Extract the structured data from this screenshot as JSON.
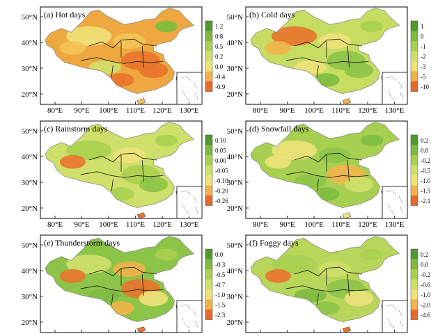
{
  "lat_labels": [
    "50°N",
    "40°N",
    "30°N",
    "20°N"
  ],
  "lon_labels": [
    "80°E",
    "90°E",
    "100°E",
    "110°E",
    "120°E",
    "130°E"
  ],
  "panels": [
    {
      "title": "(a) Hot days",
      "ticks": [
        "1.2",
        "0.8",
        "0.5",
        "0.2",
        "0.0",
        "-0.4",
        "-0.9"
      ],
      "scale": [
        "#4e9a2e",
        "#7dbb40",
        "#a8d050",
        "#cfe06a",
        "#eee27a",
        "#f2b24a",
        "#e86a2a"
      ],
      "base": "#efa840",
      "blobs": [
        {
          "c": "#eee27a"
        },
        {
          "c": "#f3c458"
        },
        {
          "c": "#e9732c"
        },
        {
          "c": "#e9732c"
        },
        {
          "c": "#cfe06a"
        },
        {
          "c": "#7dbb40"
        },
        {
          "c": "#f3c458"
        },
        {
          "c": "#e9732c"
        }
      ]
    },
    {
      "title": "(b) Cold days",
      "ticks": [
        "1",
        "0",
        "-1",
        "-2",
        "-3",
        "-5",
        "-10"
      ],
      "scale": [
        "#4e9a2e",
        "#7dbb40",
        "#a8d050",
        "#cfe06a",
        "#eee27a",
        "#f2b24a",
        "#e86a2a"
      ],
      "base": "#c6dd62",
      "blobs": [
        {
          "c": "#e9732c"
        },
        {
          "c": "#eee27a"
        },
        {
          "c": "#8cc447"
        },
        {
          "c": "#8cc447"
        },
        {
          "c": "#eee27a"
        },
        {
          "c": "#a8d050"
        },
        {
          "c": "#f2b24a"
        },
        {
          "c": "#7dbb40"
        }
      ]
    },
    {
      "title": "(c) Rainstorm days",
      "ticks": [
        "0.10",
        "0.05",
        "0.00",
        "-0.05",
        "-0.10",
        "-0.20",
        "-0.26"
      ],
      "scale": [
        "#4e9a2e",
        "#7dbb40",
        "#a8d050",
        "#cfe06a",
        "#eee27a",
        "#f2b24a",
        "#e86a2a"
      ],
      "base": "#cfe06a",
      "blobs": [
        {
          "c": "#a8d050"
        },
        {
          "c": "#eee27a"
        },
        {
          "c": "#a8d050"
        },
        {
          "c": "#8cc447"
        },
        {
          "c": "#cfe06a"
        },
        {
          "c": "#a8d050"
        },
        {
          "c": "#e9732c"
        },
        {
          "c": "#a8d050"
        }
      ]
    },
    {
      "title": "(d) Snowfall days",
      "ticks": [
        "0.2",
        "0.0",
        "-0.2",
        "-0.5",
        "-1.0",
        "-1.5",
        "-2.1"
      ],
      "scale": [
        "#4e9a2e",
        "#7dbb40",
        "#a8d050",
        "#cfe06a",
        "#eee27a",
        "#f2b24a",
        "#e86a2a"
      ],
      "base": "#a8d050",
      "blobs": [
        {
          "c": "#eee27a"
        },
        {
          "c": "#8cc447"
        },
        {
          "c": "#f2b24a"
        },
        {
          "c": "#cfe06a"
        },
        {
          "c": "#8cc447"
        },
        {
          "c": "#7dbb40"
        },
        {
          "c": "#eee27a"
        },
        {
          "c": "#7dbb40"
        }
      ]
    },
    {
      "title": "(e) Thunderstorm days",
      "ticks": [
        "0.0",
        "-0.3",
        "-0.5",
        "-0.7",
        "-1.0",
        "-1.5",
        "-2.3"
      ],
      "scale": [
        "#4e9a2e",
        "#7dbb40",
        "#a8d050",
        "#cfe06a",
        "#eee27a",
        "#f2b24a",
        "#e86a2a"
      ],
      "base": "#8cc447",
      "blobs": [
        {
          "c": "#cfe06a"
        },
        {
          "c": "#f2b24a"
        },
        {
          "c": "#e9732c"
        },
        {
          "c": "#eee27a"
        },
        {
          "c": "#7dbb40"
        },
        {
          "c": "#a8d050"
        },
        {
          "c": "#e9732c"
        },
        {
          "c": "#f2b24a"
        }
      ]
    },
    {
      "title": "(f) Foggy days",
      "ticks": [
        "0.2",
        "0.0",
        "-0.2",
        "-0.6",
        "-1.0",
        "-2.0",
        "-4.6"
      ],
      "scale": [
        "#4e9a2e",
        "#7dbb40",
        "#a8d050",
        "#cfe06a",
        "#eee27a",
        "#f2b24a",
        "#e86a2a"
      ],
      "base": "#b8d659",
      "blobs": [
        {
          "c": "#a8d050"
        },
        {
          "c": "#cfe06a"
        },
        {
          "c": "#8cc447"
        },
        {
          "c": "#eee27a"
        },
        {
          "c": "#7dbb40"
        },
        {
          "c": "#a8d050"
        },
        {
          "c": "#e9732c"
        },
        {
          "c": "#8cc447"
        }
      ]
    }
  ]
}
